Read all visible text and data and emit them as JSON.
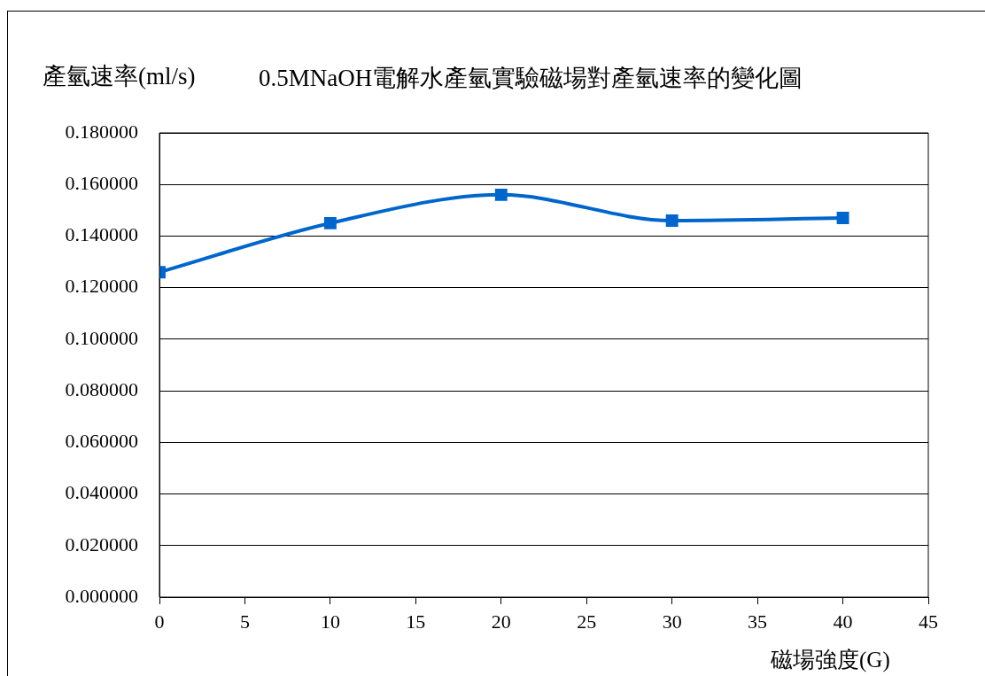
{
  "chart_data": {
    "type": "line",
    "title": "0.5MNaOH電解水產氫實驗磁場對產氫速率的變化圖",
    "ylabel": "產氫速率(ml/s)",
    "xlabel": "磁場強度(G)",
    "x": [
      0,
      10,
      20,
      30,
      40
    ],
    "series": [
      {
        "color": "#0066cc",
        "values": [
          0.126,
          0.145,
          0.156,
          0.146,
          0.147
        ]
      }
    ],
    "xlim": [
      0,
      45
    ],
    "xticks": [
      0,
      5,
      10,
      15,
      20,
      25,
      30,
      35,
      40,
      45
    ],
    "ylim": [
      0,
      0.18
    ],
    "yticks": [
      {
        "value": 0,
        "label": "0.000000"
      },
      {
        "value": 0.02,
        "label": "0.020000"
      },
      {
        "value": 0.04,
        "label": "0.040000"
      },
      {
        "value": 0.06,
        "label": "0.060000"
      },
      {
        "value": 0.08,
        "label": "0.080000"
      },
      {
        "value": 0.1,
        "label": "0.100000"
      },
      {
        "value": 0.12,
        "label": "0.120000"
      },
      {
        "value": 0.14,
        "label": "0.140000"
      },
      {
        "value": 0.16,
        "label": "0.160000"
      },
      {
        "value": 0.18,
        "label": "0.180000"
      }
    ],
    "grid": "y",
    "legend": false,
    "marker": "square",
    "line_style": "solid"
  }
}
